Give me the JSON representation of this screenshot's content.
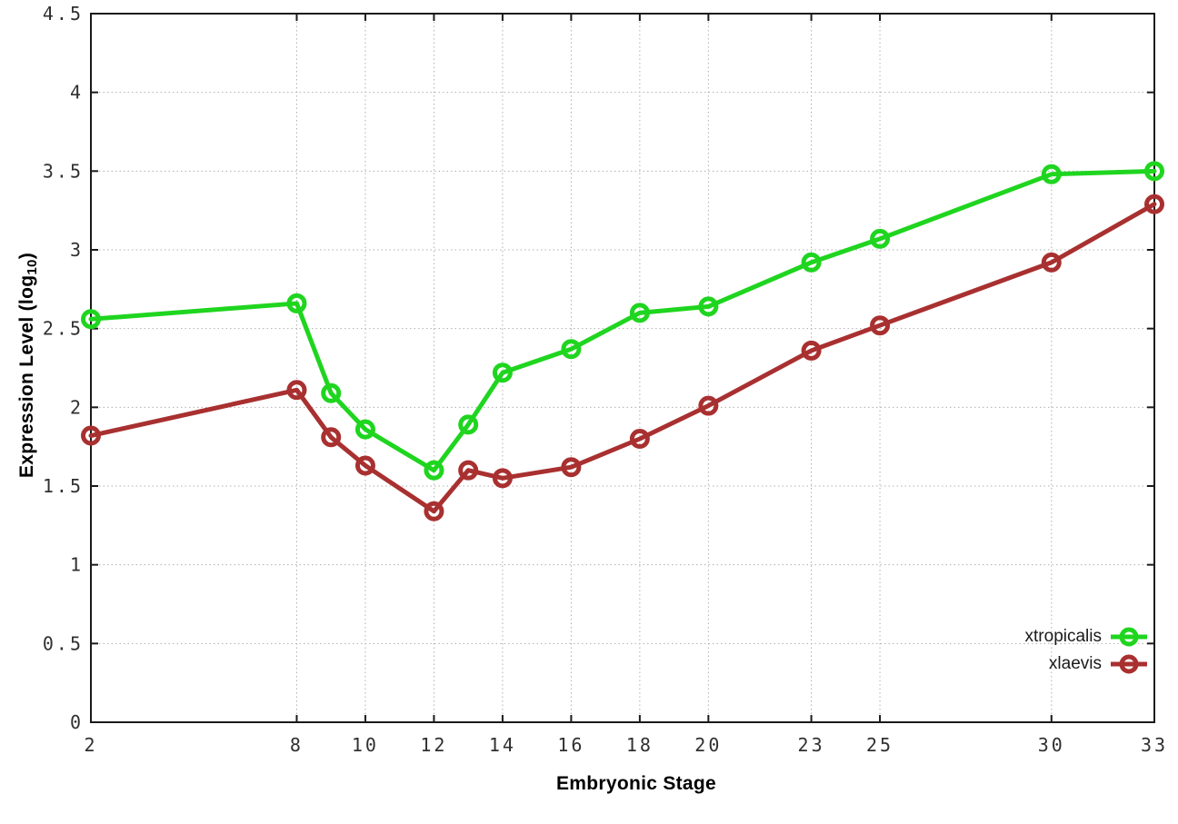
{
  "page": {
    "background": "#ffffff"
  },
  "chart_data": {
    "type": "line",
    "title": "",
    "xlabel": "Embryonic Stage",
    "ylabel": "Expression Level (log10)",
    "ylabel_parts": {
      "prefix": "Expression Level (log",
      "sub": "10",
      "suffix": ")"
    },
    "x_range": [
      2,
      33
    ],
    "y_range": [
      0,
      4.5
    ],
    "x_ticks": [
      2,
      8,
      10,
      12,
      14,
      16,
      18,
      20,
      23,
      25,
      30,
      33
    ],
    "x_tick_labels": [
      "2",
      "8",
      "10",
      "12",
      "14",
      "16",
      "18",
      "20",
      "23",
      "25",
      "30",
      "33"
    ],
    "y_ticks": [
      0,
      0.5,
      1,
      1.5,
      2,
      2.5,
      3,
      3.5,
      4,
      4.5
    ],
    "y_tick_labels": [
      "0",
      "0.5",
      "1",
      "1.5",
      "2",
      "2.5",
      "3",
      "3.5",
      "4",
      "4.5"
    ],
    "grid": "dotted",
    "legend_position": "inside-bottom-right",
    "marker": "open-circle",
    "x": [
      2,
      8,
      9,
      10,
      12,
      13,
      14,
      16,
      18,
      20,
      23,
      25,
      30,
      33
    ],
    "series": [
      {
        "name": "xtropicalis",
        "color": "#1fd51f",
        "values": [
          2.56,
          2.66,
          2.09,
          1.86,
          1.6,
          1.89,
          2.22,
          2.37,
          2.6,
          2.64,
          2.92,
          3.07,
          3.48,
          3.5
        ]
      },
      {
        "name": "xlaevis",
        "color": "#a93030",
        "values": [
          1.82,
          2.11,
          1.81,
          1.63,
          1.34,
          1.6,
          1.55,
          1.62,
          1.8,
          2.01,
          2.36,
          2.52,
          2.92,
          3.29
        ]
      }
    ]
  },
  "colors": {
    "axis": "#1a1a1a",
    "grid": "#b0b0b0",
    "tick_text": "#303030",
    "title_text": "#000000"
  }
}
